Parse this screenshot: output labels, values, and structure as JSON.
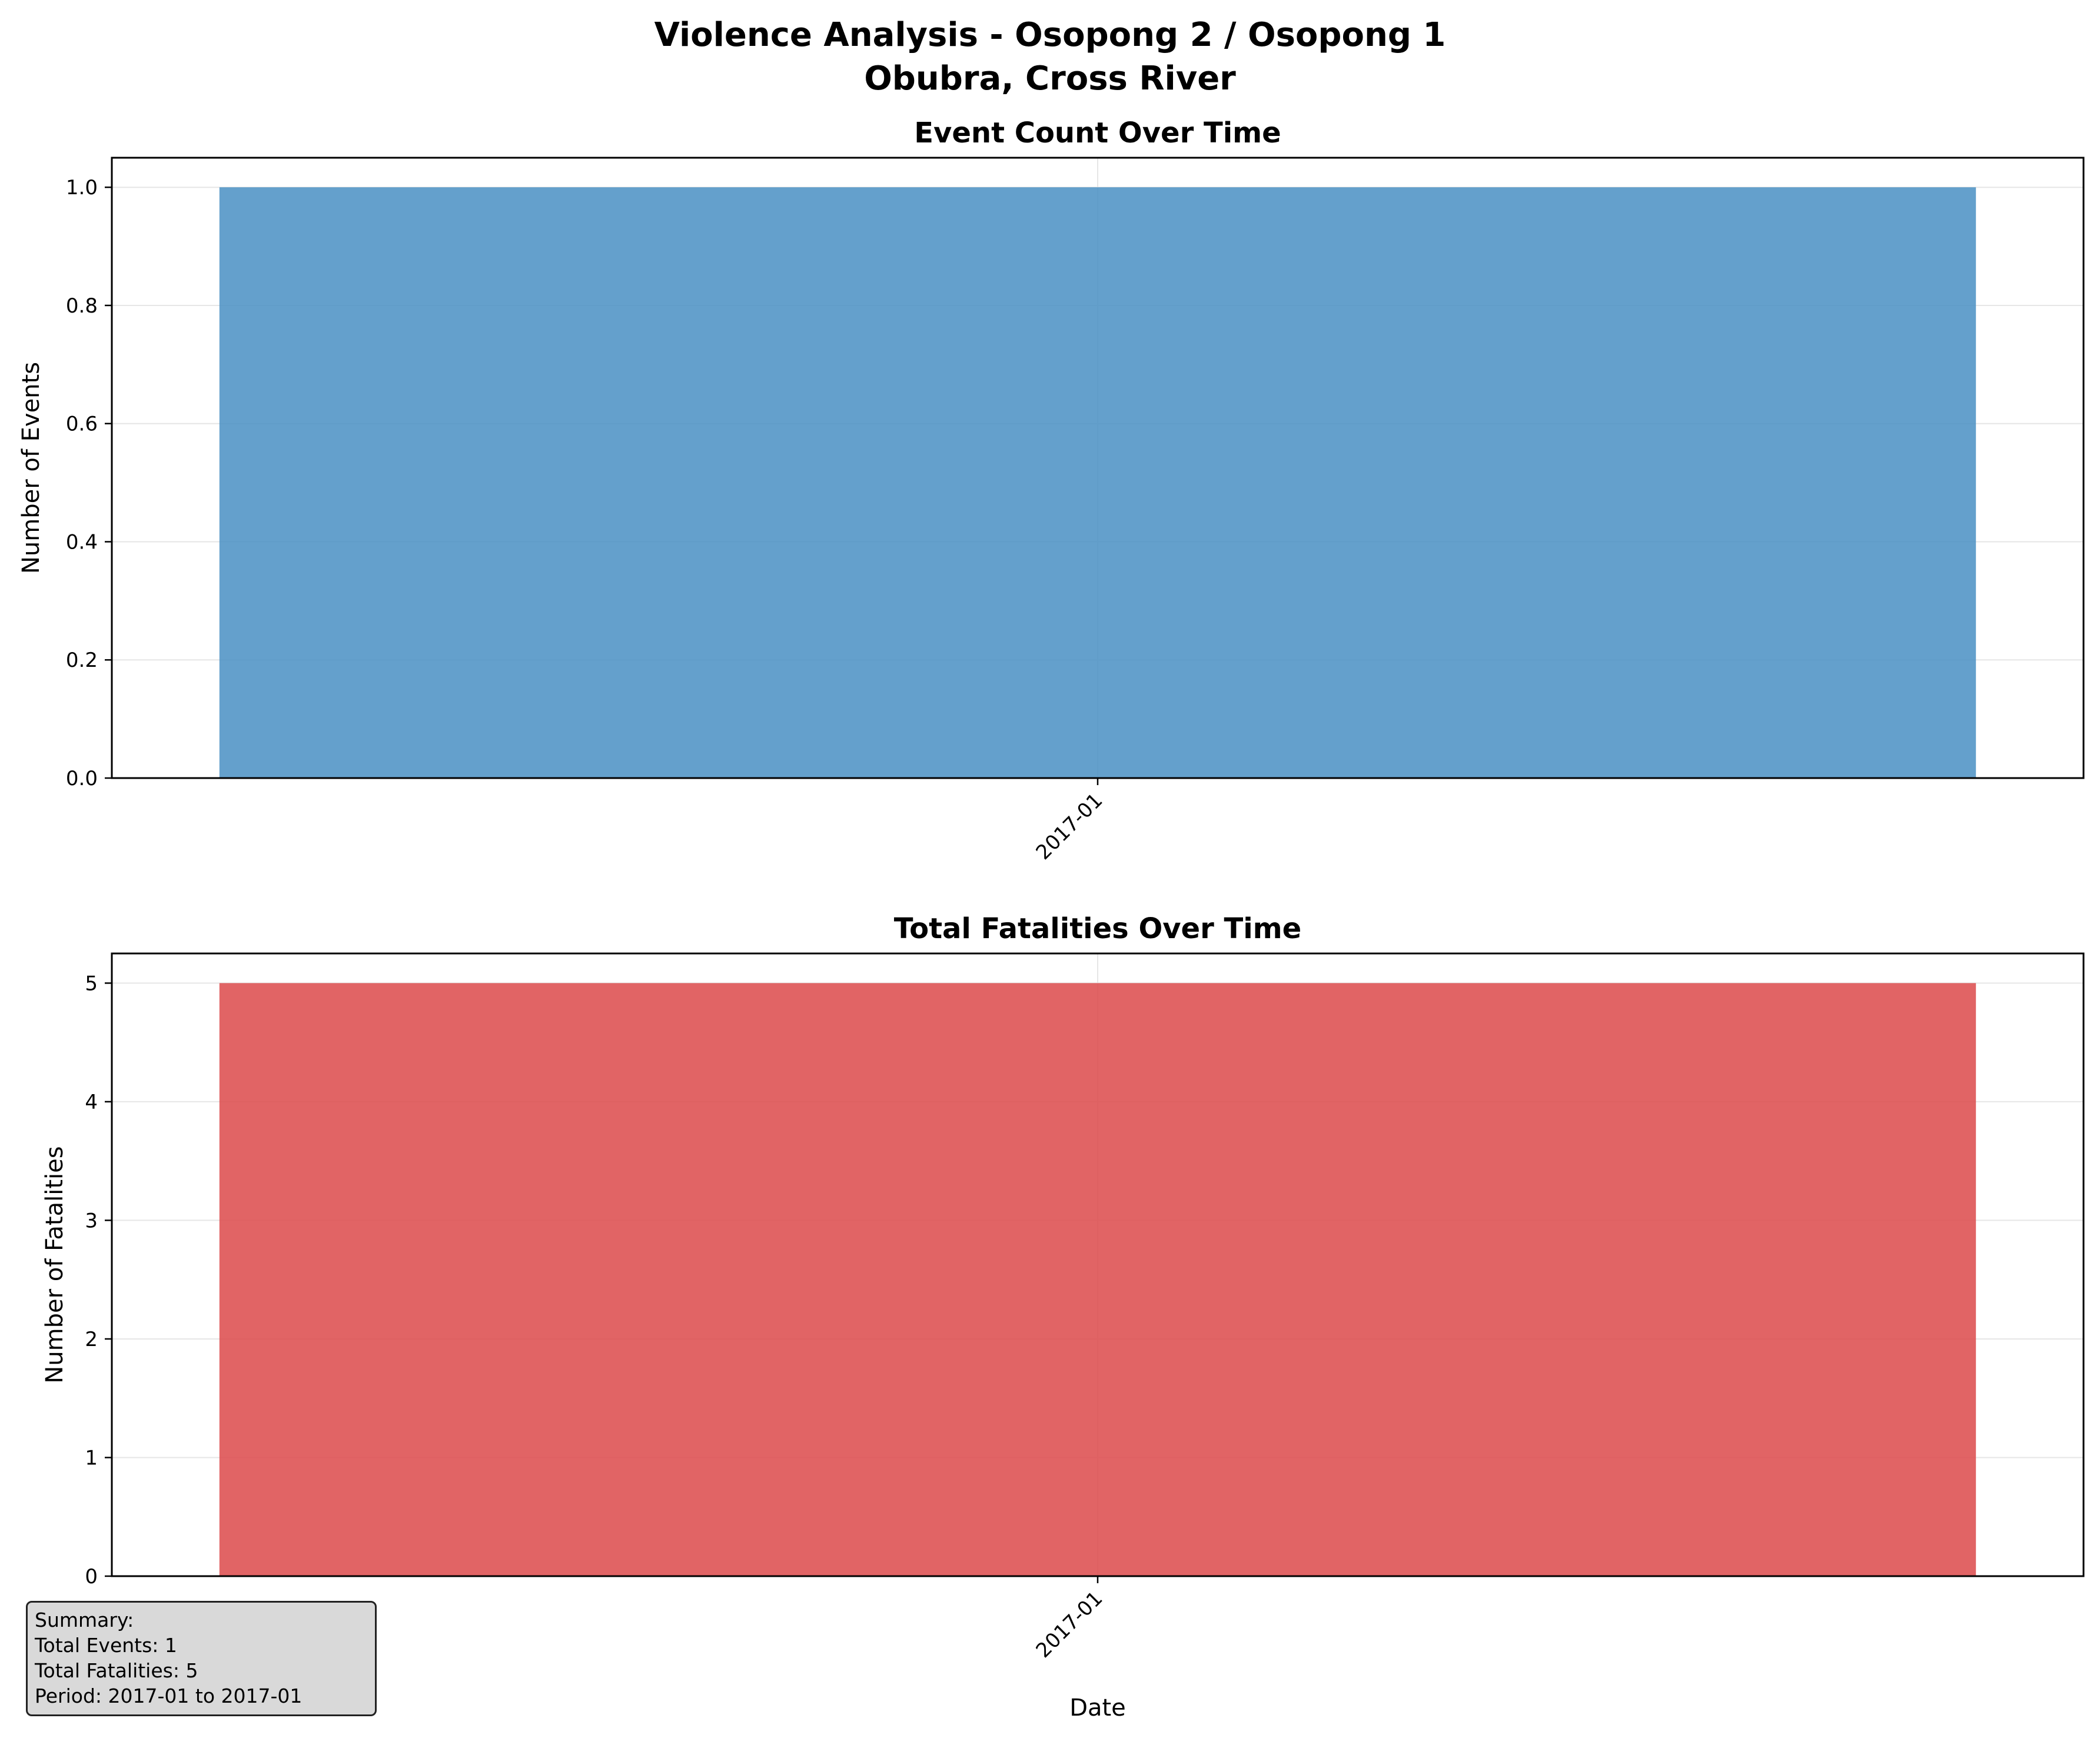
{
  "figure": {
    "title_line1": "Violence Analysis - Osopong 2 / Osopong 1",
    "title_line2": "Obubra, Cross River"
  },
  "colors": {
    "events_bar": "#4a90c4",
    "fatalities_bar": "#dc4a4c",
    "grid": "#e6e6e6"
  },
  "chart_data": [
    {
      "type": "bar",
      "title": "Event Count Over Time",
      "xlabel": "",
      "ylabel": "Number of Events",
      "categories": [
        "2017-01"
      ],
      "values": [
        1
      ],
      "ylim": [
        0,
        1.05
      ],
      "yticks": [
        0.0,
        0.2,
        0.4,
        0.6,
        0.8,
        1.0
      ],
      "ytick_labels": [
        "0.0",
        "0.2",
        "0.4",
        "0.6",
        "0.8",
        "1.0"
      ],
      "grid": true
    },
    {
      "type": "bar",
      "title": "Total Fatalities Over Time",
      "xlabel": "Date",
      "ylabel": "Number of Fatalities",
      "categories": [
        "2017-01"
      ],
      "values": [
        5
      ],
      "ylim": [
        0,
        5.25
      ],
      "yticks": [
        0,
        1,
        2,
        3,
        4,
        5
      ],
      "ytick_labels": [
        "0",
        "1",
        "2",
        "3",
        "4",
        "5"
      ],
      "grid": true
    }
  ],
  "summary": {
    "heading": "Summary:",
    "events": "Total Events: 1",
    "fatalities": "Total Fatalities: 5",
    "period": "Period: 2017-01 to 2017-01"
  }
}
